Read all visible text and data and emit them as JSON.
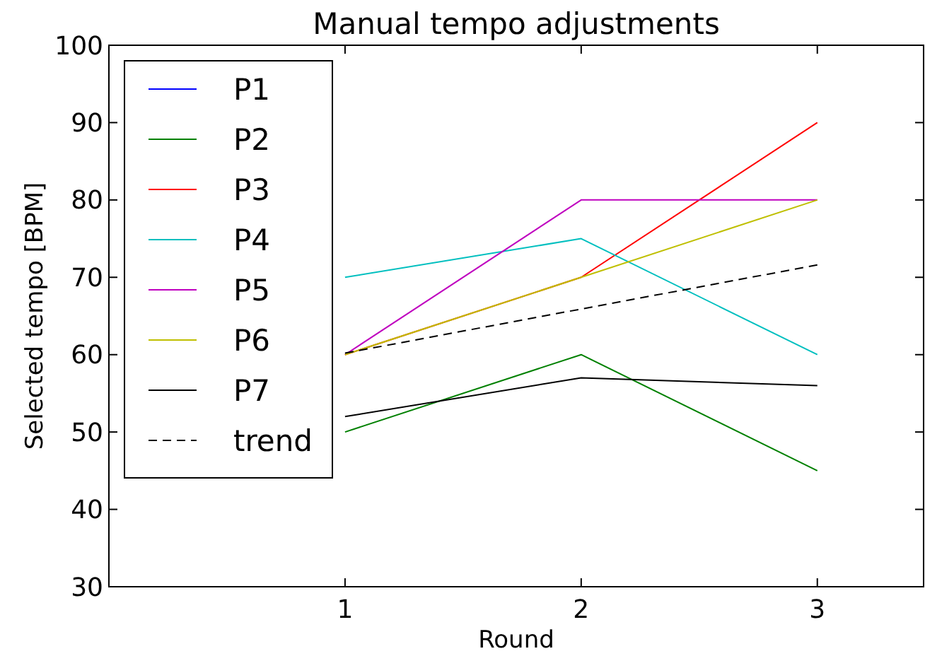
{
  "chart_data": {
    "type": "line",
    "title": "Manual tempo adjustments",
    "xlabel": "Round",
    "ylabel": "Selected tempo [BPM]",
    "x": [
      1,
      2,
      3
    ],
    "xlim": [
      0,
      3.45
    ],
    "xticks": [
      1,
      2,
      3
    ],
    "ylim": [
      30,
      100
    ],
    "yticks": [
      30,
      40,
      50,
      60,
      70,
      80,
      90,
      100
    ],
    "grid": false,
    "legend": "top left",
    "marker": "none",
    "series": [
      {
        "name": "P1",
        "color": "#0000ff",
        "values": [
          null,
          null,
          null
        ]
      },
      {
        "name": "P2",
        "color": "#008000",
        "values": [
          50,
          60,
          45
        ]
      },
      {
        "name": "P3",
        "color": "#ff0000",
        "values": [
          60,
          70,
          90
        ]
      },
      {
        "name": "P4",
        "color": "#00bfbf",
        "values": [
          70,
          75,
          60
        ]
      },
      {
        "name": "P5",
        "color": "#bf00bf",
        "values": [
          60,
          80,
          80
        ]
      },
      {
        "name": "P6",
        "color": "#bfbf00",
        "values": [
          60,
          70,
          80
        ]
      },
      {
        "name": "P7",
        "color": "#000000",
        "values": [
          52,
          57,
          56
        ]
      },
      {
        "name": "trend",
        "type": "line",
        "color": "#000000",
        "line_style": "dashed",
        "x": [
          1,
          2,
          3
        ],
        "values": [
          60.2,
          65.9,
          71.6
        ]
      }
    ]
  }
}
